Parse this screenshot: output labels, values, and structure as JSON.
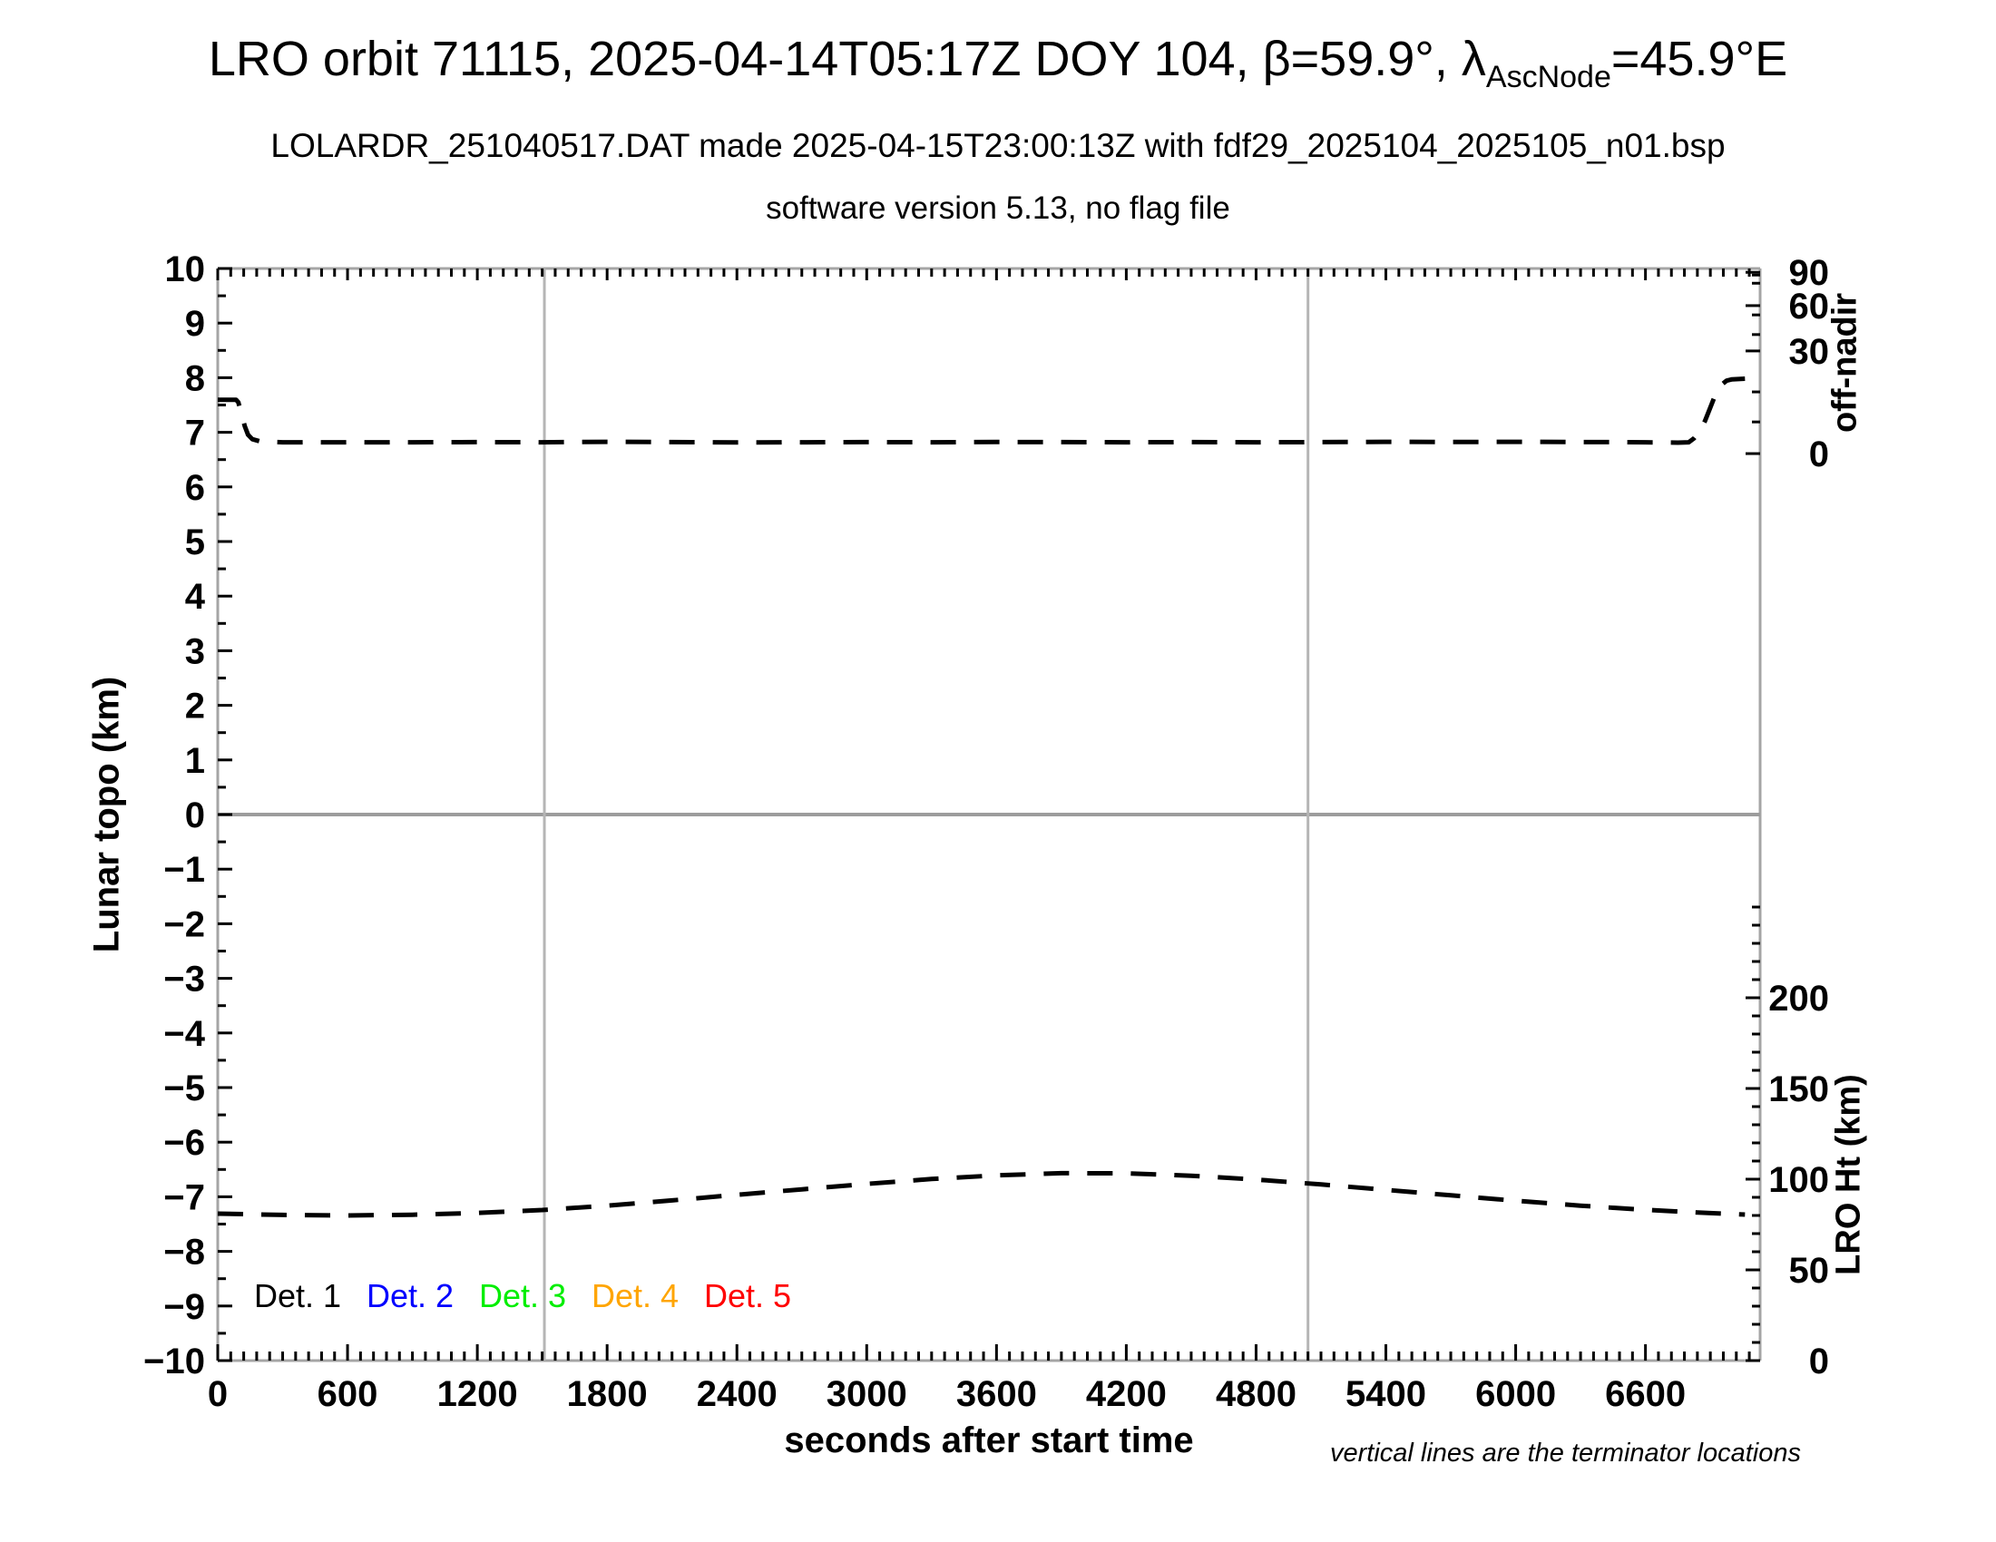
{
  "title": {
    "prefix": "LRO orbit 71115, 2025-04-14T05:17Z DOY 104, β=59.9°, λ",
    "subscript": "AscNode",
    "suffix": "=45.9°E"
  },
  "subtitle": "LOLARDR_251040517.DAT made 2025-04-15T23:00:13Z with fdf29_2025104_2025105_n01.bsp",
  "subtitle2": "software version 5.13, no flag file",
  "footnote": "vertical lines are the terminator locations",
  "chart_data": {
    "type": "line",
    "background": "#ffffff",
    "x_axis": {
      "label": "seconds after start time",
      "min": 0,
      "max": 7130,
      "major_tick": 600,
      "minor_tick": 60,
      "tick_values": [
        0,
        600,
        1200,
        1800,
        2400,
        3000,
        3600,
        4200,
        4800,
        5400,
        6000,
        6600
      ]
    },
    "y_left": {
      "label": "Lunar topo (km)",
      "min": -10,
      "max": 10,
      "major_tick": 1,
      "minor_tick": 0.5,
      "tick_values": [
        10,
        9,
        8,
        7,
        6,
        5,
        4,
        3,
        2,
        1,
        0,
        -1,
        -2,
        -3,
        -4,
        -5,
        -6,
        -7,
        -8,
        -9,
        -10
      ],
      "tick_labels": [
        "10",
        "9",
        "8",
        "7",
        "6",
        "5",
        "4",
        "3",
        "2",
        "1",
        "0",
        "−1",
        "−2",
        "−3",
        "−4",
        "−5",
        "−6",
        "−7",
        "−8",
        "−9",
        "−10"
      ]
    },
    "y_right_top": {
      "label": "off-nadir",
      "scale": "nonlinear",
      "ticks": [
        {
          "value": 90,
          "label": "90"
        },
        {
          "value": 60,
          "label": "60"
        },
        {
          "value": 30,
          "label": "30"
        },
        {
          "value": 0,
          "label": "0"
        }
      ],
      "calibration_deg_to_topo": [
        [
          0,
          6.61
        ],
        [
          30,
          8.49
        ],
        [
          60,
          9.32
        ],
        [
          90,
          9.93
        ]
      ],
      "minor_tick_topo": [
        7.19,
        7.74,
        8.79,
        9.15,
        9.73,
        9.88
      ]
    },
    "y_right_bottom": {
      "label": "LRO Ht (km)",
      "scale": "linear",
      "ticks": [
        {
          "value": 200,
          "label": "200"
        },
        {
          "value": 150,
          "label": "150"
        },
        {
          "value": 100,
          "label": "100"
        },
        {
          "value": 50,
          "label": "50"
        },
        {
          "value": 0,
          "label": "0"
        }
      ],
      "topo_at_0km": -10,
      "topo_per_km": 0.033223,
      "minor_tick_km": 10,
      "minor_tick_km_max": 250
    },
    "zero_line_topo": 0,
    "terminator_lines_sec": [
      1510,
      5040
    ],
    "series": [
      {
        "name": "off-nadir angle",
        "axis": "y_right_top",
        "units": "deg",
        "style": "dashed",
        "color": "#000000",
        "points": [
          [
            0,
            15.7
          ],
          [
            85,
            15.7
          ],
          [
            95,
            15.0
          ],
          [
            110,
            11.5
          ],
          [
            125,
            8.0
          ],
          [
            140,
            5.5
          ],
          [
            160,
            4.2
          ],
          [
            200,
            3.5
          ],
          [
            300,
            3.3
          ],
          [
            600,
            3.3
          ],
          [
            900,
            3.3
          ],
          [
            1200,
            3.35
          ],
          [
            1500,
            3.3
          ],
          [
            1800,
            3.45
          ],
          [
            2100,
            3.35
          ],
          [
            2400,
            3.25
          ],
          [
            2700,
            3.3
          ],
          [
            3000,
            3.35
          ],
          [
            3300,
            3.3
          ],
          [
            3600,
            3.4
          ],
          [
            3900,
            3.35
          ],
          [
            4200,
            3.3
          ],
          [
            4500,
            3.35
          ],
          [
            4800,
            3.3
          ],
          [
            5100,
            3.35
          ],
          [
            5400,
            3.45
          ],
          [
            5700,
            3.4
          ],
          [
            6000,
            3.45
          ],
          [
            6300,
            3.4
          ],
          [
            6600,
            3.3
          ],
          [
            6750,
            3.2
          ],
          [
            6800,
            3.3
          ],
          [
            6825,
            4.5
          ],
          [
            6850,
            6.5
          ],
          [
            6875,
            9.5
          ],
          [
            6900,
            13.5
          ],
          [
            6925,
            17.5
          ],
          [
            6950,
            20.0
          ],
          [
            6975,
            21.3
          ],
          [
            7000,
            21.7
          ],
          [
            7060,
            21.9
          ]
        ]
      },
      {
        "name": "LRO height",
        "axis": "y_right_bottom",
        "units": "km",
        "style": "dashed",
        "color": "#000000",
        "points": [
          [
            0,
            81.0
          ],
          [
            300,
            80.3
          ],
          [
            600,
            80.0
          ],
          [
            900,
            80.4
          ],
          [
            1200,
            81.4
          ],
          [
            1500,
            83.0
          ],
          [
            1800,
            85.4
          ],
          [
            2100,
            88.3
          ],
          [
            2400,
            91.4
          ],
          [
            2700,
            94.4
          ],
          [
            3000,
            97.4
          ],
          [
            3300,
            100.1
          ],
          [
            3600,
            102.1
          ],
          [
            3900,
            103.3
          ],
          [
            4200,
            103.2
          ],
          [
            4500,
            101.9
          ],
          [
            4800,
            99.8
          ],
          [
            5100,
            97.1
          ],
          [
            5400,
            94.1
          ],
          [
            5700,
            91.1
          ],
          [
            6000,
            88.1
          ],
          [
            6300,
            85.4
          ],
          [
            6600,
            83.1
          ],
          [
            6900,
            81.3
          ],
          [
            7060,
            80.5
          ]
        ]
      }
    ],
    "legend": {
      "position": "inside-bottom-left",
      "items": [
        {
          "label": "Det. 1",
          "color": "#000000"
        },
        {
          "label": "Det. 2",
          "color": "#0000ff"
        },
        {
          "label": "Det. 3",
          "color": "#00ee00"
        },
        {
          "label": "Det. 4",
          "color": "#ffa500"
        },
        {
          "label": "Det. 5",
          "color": "#ff0000"
        }
      ]
    },
    "colors": {
      "frame": "#a5a5a5",
      "zero_line": "#9c9c9c",
      "terminator_line": "#b5b5b5",
      "curves": "#000000"
    }
  }
}
